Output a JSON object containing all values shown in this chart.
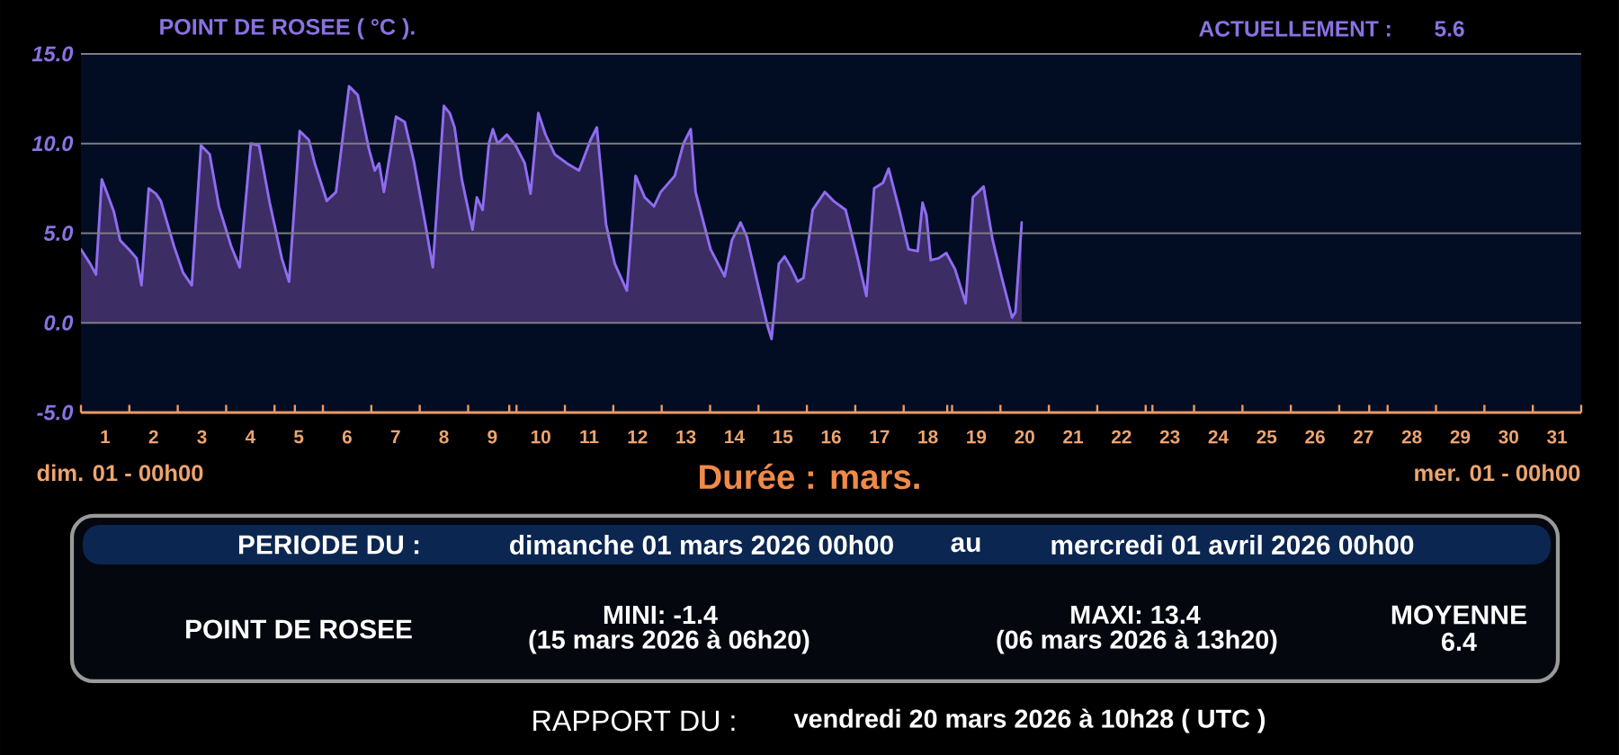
{
  "chart_data": {
    "type": "area",
    "title": "POINT DE ROSEE ( °C ).",
    "xlabel": "Durée : mars.",
    "annotations": [
      "ACTUELLEMENT :",
      "5.6",
      "dim. 01 - 00h00",
      "mer. 01 - 00h00",
      "PERIODE DU :",
      "dimanche 01 mars 2026 00h00",
      "au",
      "mercredi 01 avril 2026 00h00",
      "POINT DE ROSEE",
      "MINI: -1.4",
      "(15 mars 2026 à 06h20)",
      "MAXI: 13.4",
      "(06 mars 2026 à 13h20)",
      "MOYENNE",
      "6.4",
      "RAPPORT DU :",
      "vendredi 20 mars 2026 à 10h28 ( UTC )"
    ],
    "color": "#8f6cf0",
    "x": [
      0.5,
      0.69,
      0.81,
      0.93,
      1.03,
      1.18,
      1.31,
      1.49,
      1.65,
      1.75,
      1.9,
      2.05,
      2.15,
      2.42,
      2.61,
      2.79,
      2.98,
      3.16,
      3.35,
      3.6,
      3.78,
      4.01,
      4.18,
      4.4,
      4.65,
      4.8,
      5.02,
      5.21,
      5.33,
      5.58,
      5.77,
      6.04,
      6.22,
      6.45,
      6.57,
      6.66,
      6.76,
      7.01,
      7.19,
      7.38,
      7.63,
      7.77,
      8.0,
      8.12,
      8.22,
      8.37,
      8.59,
      8.68,
      8.8,
      8.93,
      9.01,
      9.11,
      9.3,
      9.48,
      9.67,
      9.79,
      9.95,
      10.1,
      10.29,
      10.54,
      10.79,
      11.03,
      11.16,
      11.35,
      11.53,
      11.78,
      11.96,
      12.15,
      12.34,
      12.48,
      12.77,
      12.95,
      13.1,
      13.2,
      13.51,
      13.8,
      13.95,
      14.13,
      14.26,
      14.5,
      14.69,
      14.77,
      14.92,
      15.04,
      15.17,
      15.31,
      15.43,
      15.62,
      15.87,
      16.05,
      16.3,
      16.55,
      16.73,
      16.89,
      17.07,
      17.19,
      17.41,
      17.6,
      17.79,
      17.89,
      17.97,
      18.06,
      18.22,
      18.38,
      18.56,
      18.78,
      18.93,
      19.15,
      19.34,
      19.52,
      19.74,
      19.81,
      19.94
    ],
    "values": [
      4.1,
      3.3,
      2.7,
      8.0,
      7.3,
      6.2,
      4.6,
      4.1,
      3.6,
      2.1,
      7.5,
      7.2,
      6.8,
      4.3,
      2.8,
      2.1,
      9.9,
      9.4,
      6.5,
      4.3,
      3.1,
      10.0,
      9.9,
      6.7,
      3.6,
      2.3,
      10.7,
      10.2,
      8.9,
      6.8,
      7.3,
      13.2,
      12.7,
      9.7,
      8.5,
      8.9,
      7.3,
      11.5,
      11.2,
      9.0,
      5.3,
      3.1,
      12.1,
      11.7,
      10.9,
      8.0,
      5.2,
      7.0,
      6.3,
      10.0,
      10.8,
      10.0,
      10.5,
      9.9,
      8.9,
      7.2,
      11.7,
      10.5,
      9.4,
      8.9,
      8.5,
      10.2,
      10.9,
      5.5,
      3.3,
      1.8,
      8.2,
      7.0,
      6.5,
      7.3,
      8.2,
      10.0,
      10.8,
      7.3,
      4.1,
      2.6,
      4.6,
      5.6,
      4.8,
      2.0,
      -0.2,
      -0.9,
      3.3,
      3.7,
      3.1,
      2.3,
      2.5,
      6.3,
      7.3,
      6.8,
      6.3,
      3.6,
      1.5,
      7.5,
      7.8,
      8.6,
      6.3,
      4.1,
      4.0,
      6.7,
      6.0,
      3.5,
      3.6,
      3.9,
      3.0,
      1.1,
      7.0,
      7.6,
      4.6,
      2.6,
      0.3,
      0.6,
      5.6
    ],
    "xlim": [
      0.5,
      31.5
    ],
    "ylim": [
      -5,
      15
    ],
    "xticks": [
      1,
      2,
      3,
      4,
      5,
      6,
      7,
      8,
      9,
      10,
      11,
      12,
      13,
      14,
      15,
      16,
      17,
      18,
      19,
      20,
      21,
      22,
      23,
      24,
      25,
      26,
      27,
      28,
      29,
      30,
      31,
      {
        "value": 0.5,
        "label": null
      },
      {
        "value": 1.5,
        "label": null
      },
      {
        "value": 2.5,
        "label": null
      },
      {
        "value": 3.5,
        "label": null
      },
      {
        "value": 4.5,
        "label": null
      },
      {
        "value": 5.5,
        "label": null
      },
      {
        "value": 6.5,
        "label": null
      },
      {
        "value": 7.5,
        "label": null
      },
      {
        "value": 8.5,
        "label": null
      },
      {
        "value": 9.5,
        "label": null
      },
      {
        "value": 10.5,
        "label": null
      },
      {
        "value": 11.5,
        "label": null
      },
      {
        "value": 12.5,
        "label": null
      },
      {
        "value": 13.5,
        "label": null
      },
      {
        "value": 14.5,
        "label": null
      },
      {
        "value": 15.5,
        "label": null
      },
      {
        "value": 16.5,
        "label": null
      },
      {
        "value": 17.5,
        "label": null
      },
      {
        "value": 18.5,
        "label": null
      },
      {
        "value": 19.5,
        "label": null
      },
      {
        "value": 20.5,
        "label": null
      },
      {
        "value": 21.5,
        "label": null
      },
      {
        "value": 22.5,
        "label": null
      },
      {
        "value": 23.5,
        "label": null
      },
      {
        "value": 24.5,
        "label": null
      },
      {
        "value": 25.5,
        "label": null
      },
      {
        "value": 26.5,
        "label": null
      },
      {
        "value": 27.5,
        "label": null
      },
      {
        "value": 28.5,
        "label": null
      },
      {
        "value": 29.5,
        "label": null
      },
      {
        "value": 30.5,
        "label": null
      },
      {
        "value": 31.5,
        "label": null
      },
      {
        "value": 4.92,
        "label": null
      },
      {
        "value": 9.35,
        "label": null
      },
      {
        "value": 18.4,
        "label": null
      },
      {
        "value": 22.64,
        "label": null
      },
      {
        "value": 27.12,
        "label": null
      }
    ],
    "yticks": [
      {
        "value": -5,
        "label": "-5.0"
      },
      {
        "value": 0,
        "label": "0.0"
      },
      {
        "value": 5,
        "label": "5.0"
      },
      {
        "value": 10,
        "label": "10.0"
      },
      {
        "value": 15,
        "label": "15.0"
      }
    ],
    "grid": "y"
  }
}
